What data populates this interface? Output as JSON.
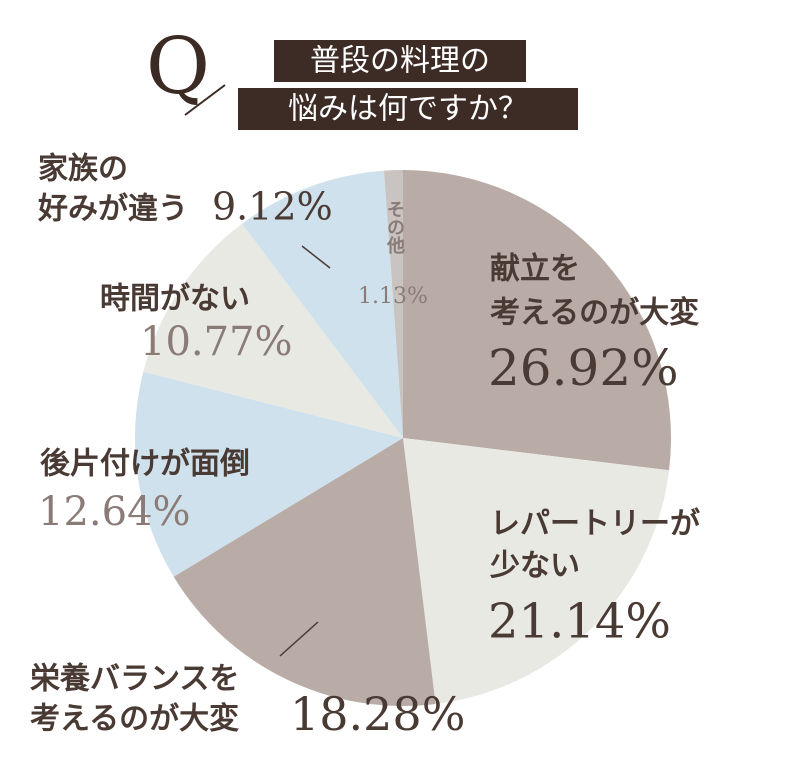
{
  "title_marker": "Q",
  "chart_data": {
    "type": "pie",
    "title": [
      "普段の料理の",
      "悩みは何ですか？"
    ],
    "categories": [
      [
        "献立を",
        "考えるのが大変"
      ],
      [
        "レパートリーが",
        "少ない"
      ],
      [
        "栄養バランスを",
        "考えるのが大変"
      ],
      [
        "後片付けが面倒"
      ],
      [
        "時間がない"
      ],
      [
        "家族の",
        "好みが違う"
      ],
      [
        "その他"
      ]
    ],
    "values": [
      26.92,
      21.14,
      18.28,
      12.64,
      10.77,
      9.12,
      1.13
    ],
    "value_labels": [
      "26.92%",
      "21.14%",
      "18.28%",
      "12.64%",
      "10.77%",
      "9.12%",
      "1.13%"
    ],
    "colors": [
      "#b9aca6",
      "#e9e9e3",
      "#b9aca6",
      "#cfe1ec",
      "#e9e9e3",
      "#cfe1ec",
      "#c9c3c1"
    ]
  }
}
